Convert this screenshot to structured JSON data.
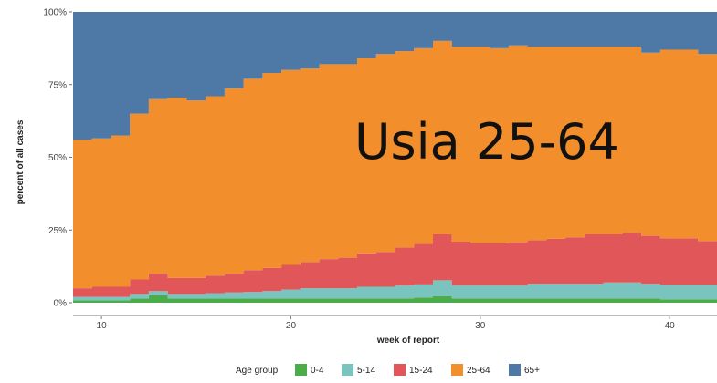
{
  "chart_data": {
    "type": "area",
    "stacked": true,
    "step": true,
    "xlabel": "week of report",
    "ylabel": "percent of all cases",
    "xlim": [
      8.5,
      42.5
    ],
    "ylim": [
      0,
      1
    ],
    "x_ticks": [
      10,
      20,
      30,
      40
    ],
    "y_ticks": [
      {
        "value": 0,
        "label": "0%"
      },
      {
        "value": 0.25,
        "label": "25%"
      },
      {
        "value": 0.5,
        "label": "50%"
      },
      {
        "value": 0.75,
        "label": "75%"
      },
      {
        "value": 1,
        "label": "100%"
      }
    ],
    "grid": false,
    "legend": {
      "title": "Age group",
      "placement": "bottom"
    },
    "annotation": "Usia 25-64",
    "x": [
      9,
      10,
      11,
      12,
      13,
      14,
      15,
      16,
      17,
      18,
      19,
      20,
      21,
      22,
      23,
      24,
      25,
      26,
      27,
      28,
      29,
      30,
      31,
      32,
      33,
      34,
      35,
      36,
      37,
      38,
      39,
      40,
      41,
      42
    ],
    "series": [
      {
        "name": "0-4",
        "color": "#4dac4a",
        "values": [
          0.008,
          0.008,
          0.008,
          0.015,
          0.025,
          0.015,
          0.015,
          0.015,
          0.015,
          0.015,
          0.015,
          0.015,
          0.015,
          0.015,
          0.015,
          0.015,
          0.015,
          0.015,
          0.018,
          0.022,
          0.015,
          0.015,
          0.015,
          0.015,
          0.015,
          0.015,
          0.015,
          0.015,
          0.015,
          0.015,
          0.015,
          0.012,
          0.012,
          0.012
        ]
      },
      {
        "name": "5-14",
        "color": "#7ac4c0",
        "values": [
          0.012,
          0.012,
          0.012,
          0.015,
          0.015,
          0.015,
          0.015,
          0.018,
          0.02,
          0.022,
          0.025,
          0.03,
          0.035,
          0.035,
          0.035,
          0.04,
          0.04,
          0.045,
          0.045,
          0.055,
          0.045,
          0.045,
          0.045,
          0.045,
          0.05,
          0.05,
          0.05,
          0.05,
          0.055,
          0.055,
          0.05,
          0.05,
          0.05,
          0.05
        ]
      },
      {
        "name": "15-24",
        "color": "#e15759",
        "values": [
          0.03,
          0.035,
          0.035,
          0.05,
          0.06,
          0.055,
          0.055,
          0.06,
          0.065,
          0.075,
          0.08,
          0.085,
          0.09,
          0.1,
          0.105,
          0.115,
          0.12,
          0.13,
          0.14,
          0.158,
          0.15,
          0.145,
          0.145,
          0.148,
          0.15,
          0.155,
          0.16,
          0.17,
          0.165,
          0.17,
          0.165,
          0.16,
          0.16,
          0.15
        ]
      },
      {
        "name": "25-64",
        "color": "#f28e2b",
        "values": [
          0.51,
          0.51,
          0.52,
          0.57,
          0.6,
          0.62,
          0.61,
          0.617,
          0.637,
          0.658,
          0.67,
          0.67,
          0.665,
          0.67,
          0.665,
          0.67,
          0.68,
          0.675,
          0.672,
          0.665,
          0.67,
          0.675,
          0.67,
          0.677,
          0.665,
          0.66,
          0.655,
          0.645,
          0.645,
          0.64,
          0.63,
          0.648,
          0.648,
          0.643
        ]
      },
      {
        "name": "65+",
        "color": "#4e79a7",
        "values": [
          0.44,
          0.435,
          0.425,
          0.35,
          0.3,
          0.295,
          0.305,
          0.29,
          0.263,
          0.23,
          0.21,
          0.2,
          0.195,
          0.18,
          0.18,
          0.16,
          0.145,
          0.135,
          0.125,
          0.1,
          0.12,
          0.12,
          0.125,
          0.115,
          0.12,
          0.12,
          0.12,
          0.12,
          0.12,
          0.12,
          0.14,
          0.13,
          0.13,
          0.145
        ]
      }
    ]
  }
}
